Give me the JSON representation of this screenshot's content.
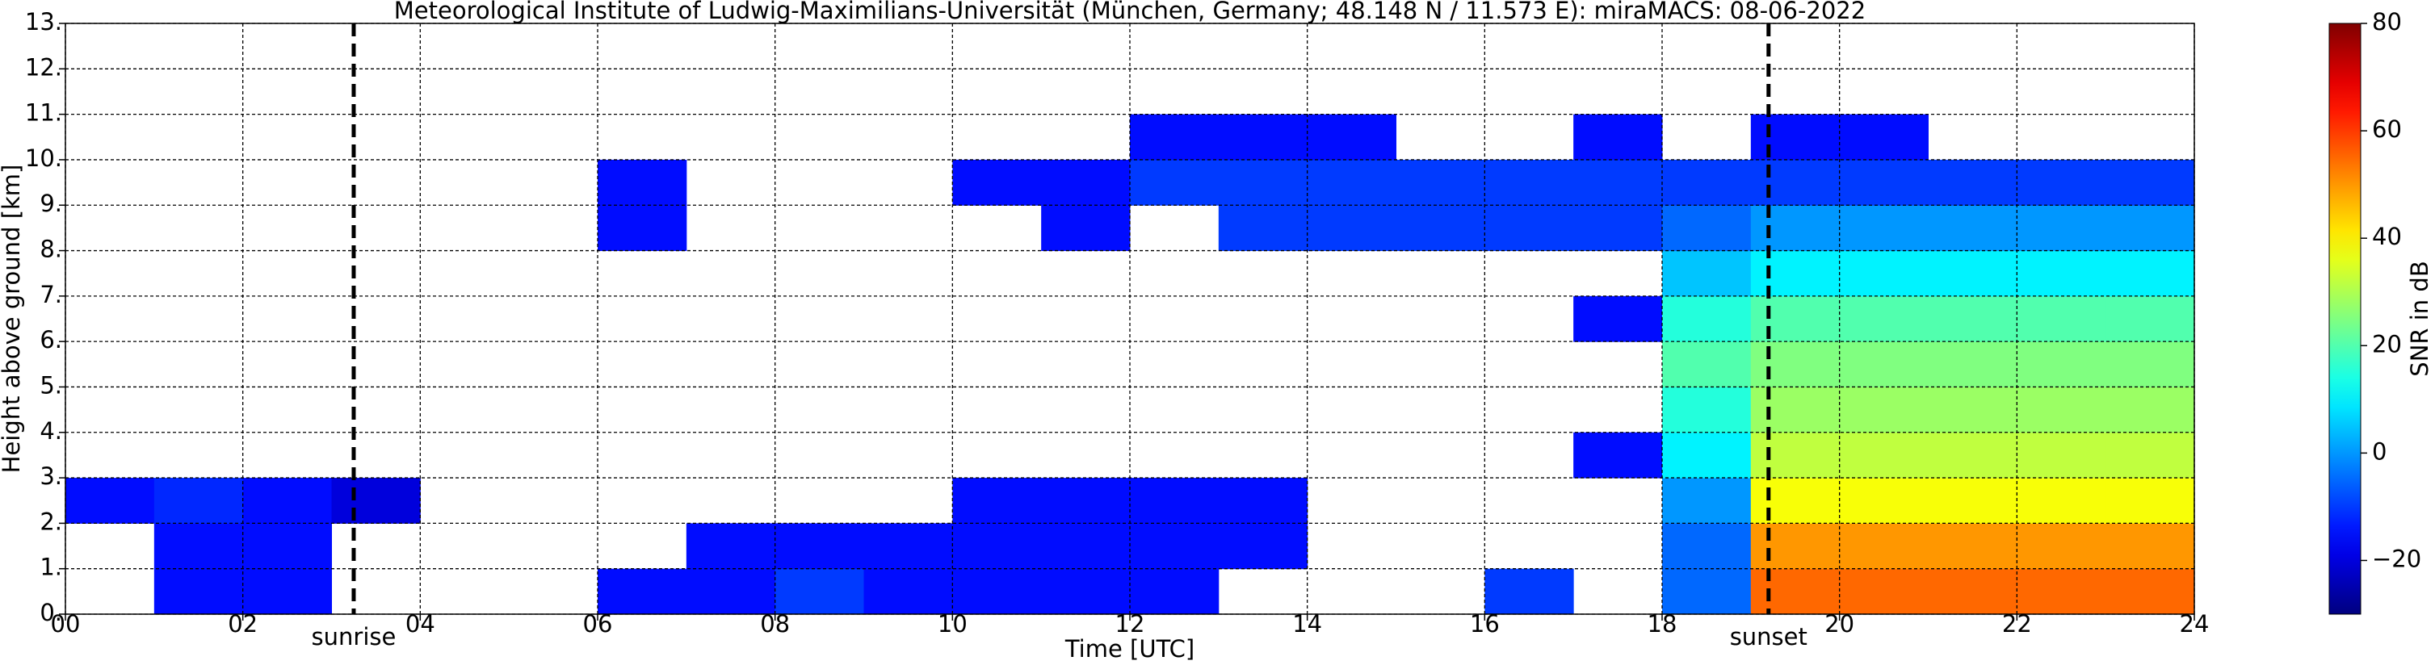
{
  "chart_data": {
    "type": "heatmap",
    "title": "Meteorological Institute of Ludwig-Maximilians-Universität (München, Germany; 48.148 N / 11.573 E):    miraMACS: 08-06-2022",
    "x_label": "Time [UTC]",
    "y_label": "Height above ground [km]",
    "colorbar_label": "SNR in dB",
    "xlim": [
      0,
      24
    ],
    "ylim": [
      0,
      13
    ],
    "clim": [
      -30,
      80
    ],
    "grid": true,
    "colorscale": "jet",
    "xticks": [
      {
        "value": 0,
        "label": "00"
      },
      {
        "value": 2,
        "label": "02"
      },
      {
        "value": 4,
        "label": "04"
      },
      {
        "value": 6,
        "label": "06"
      },
      {
        "value": 8,
        "label": "08"
      },
      {
        "value": 10,
        "label": "10"
      },
      {
        "value": 12,
        "label": "12"
      },
      {
        "value": 14,
        "label": "14"
      },
      {
        "value": 16,
        "label": "16"
      },
      {
        "value": 18,
        "label": "18"
      },
      {
        "value": 20,
        "label": "20"
      },
      {
        "value": 22,
        "label": "22"
      },
      {
        "value": 24,
        "label": "24"
      }
    ],
    "yticks": [
      {
        "value": 0,
        "label": "0."
      },
      {
        "value": 1,
        "label": "1."
      },
      {
        "value": 2,
        "label": "2."
      },
      {
        "value": 3,
        "label": "3."
      },
      {
        "value": 4,
        "label": "4."
      },
      {
        "value": 5,
        "label": "5."
      },
      {
        "value": 6,
        "label": "6."
      },
      {
        "value": 7,
        "label": "7."
      },
      {
        "value": 8,
        "label": "8."
      },
      {
        "value": 9,
        "label": "9."
      },
      {
        "value": 10,
        "label": "10."
      },
      {
        "value": 11,
        "label": "11."
      },
      {
        "value": 12,
        "label": "12."
      },
      {
        "value": 13,
        "label": "13."
      }
    ],
    "cticks": [
      {
        "value": -20,
        "label": "−20"
      },
      0,
      20,
      40,
      60,
      80
    ],
    "annotations": [
      {
        "text": "sunrise",
        "x": 3.25
      },
      {
        "text": "sunset",
        "x": 19.2
      }
    ],
    "x_bins": [
      0,
      1,
      2,
      3,
      4,
      5,
      6,
      7,
      8,
      9,
      10,
      11,
      12,
      13,
      14,
      15,
      16,
      17,
      18,
      19,
      20,
      21,
      22,
      23,
      24
    ],
    "y_bins": [
      0,
      1,
      2,
      3,
      4,
      5,
      6,
      7,
      8,
      9,
      10,
      11,
      12,
      13
    ],
    "z": [
      [
        null,
        -15,
        -15,
        null,
        null,
        null,
        -15,
        -15,
        -10,
        -15,
        -15,
        -15,
        -15,
        null,
        null,
        null,
        -10,
        null,
        -5,
        55,
        55,
        55,
        55,
        55
      ],
      [
        null,
        -15,
        -15,
        null,
        null,
        null,
        null,
        -15,
        -15,
        -15,
        -15,
        -15,
        -15,
        -15,
        null,
        null,
        null,
        null,
        -5,
        50,
        50,
        50,
        50,
        50
      ],
      [
        -15,
        -12,
        -15,
        -20,
        null,
        null,
        null,
        null,
        null,
        null,
        -15,
        -15,
        -15,
        -15,
        null,
        null,
        null,
        null,
        0,
        38,
        38,
        38,
        38,
        38
      ],
      [
        null,
        null,
        null,
        null,
        null,
        null,
        null,
        null,
        null,
        null,
        null,
        null,
        null,
        null,
        null,
        null,
        null,
        -15,
        10,
        32,
        32,
        32,
        32,
        32
      ],
      [
        null,
        null,
        null,
        null,
        null,
        null,
        null,
        null,
        null,
        null,
        null,
        null,
        null,
        null,
        null,
        null,
        null,
        null,
        15,
        28,
        28,
        28,
        28,
        28
      ],
      [
        null,
        null,
        null,
        null,
        null,
        null,
        null,
        null,
        null,
        null,
        null,
        null,
        null,
        null,
        null,
        null,
        null,
        null,
        20,
        25,
        25,
        25,
        25,
        25
      ],
      [
        null,
        null,
        null,
        null,
        null,
        null,
        null,
        null,
        null,
        null,
        null,
        null,
        null,
        null,
        null,
        null,
        null,
        -15,
        15,
        20,
        20,
        20,
        20,
        20
      ],
      [
        null,
        null,
        null,
        null,
        null,
        null,
        null,
        null,
        null,
        null,
        null,
        null,
        null,
        null,
        null,
        null,
        null,
        null,
        5,
        10,
        10,
        10,
        10,
        10
      ],
      [
        null,
        null,
        null,
        null,
        null,
        null,
        -15,
        null,
        null,
        null,
        null,
        -15,
        null,
        -10,
        -10,
        -10,
        -10,
        -10,
        -5,
        0,
        0,
        0,
        0,
        0
      ],
      [
        null,
        null,
        null,
        null,
        null,
        null,
        -15,
        null,
        null,
        null,
        -15,
        -15,
        -10,
        -10,
        -10,
        -10,
        -10,
        -10,
        -10,
        -10,
        -10,
        -10,
        -10,
        -10
      ],
      [
        null,
        null,
        null,
        null,
        null,
        null,
        null,
        null,
        null,
        null,
        null,
        null,
        -15,
        -15,
        -15,
        null,
        null,
        -15,
        null,
        -15,
        -15,
        null,
        null,
        null
      ],
      [
        null,
        null,
        null,
        null,
        null,
        null,
        null,
        null,
        null,
        null,
        null,
        null,
        null,
        null,
        null,
        null,
        null,
        null,
        null,
        null,
        null,
        null,
        null,
        null
      ],
      [
        null,
        null,
        null,
        null,
        null,
        null,
        null,
        null,
        null,
        null,
        null,
        null,
        null,
        null,
        null,
        null,
        null,
        null,
        null,
        null,
        null,
        null,
        null,
        null
      ]
    ]
  }
}
